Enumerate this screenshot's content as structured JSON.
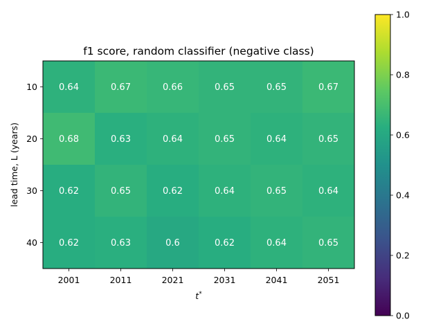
{
  "chart_data": {
    "type": "heatmap",
    "title": "f1 score, random classifier (negative class)",
    "xlabel": "t",
    "xlabel_superscript": "*",
    "ylabel": "lead time, L (years)",
    "x": [
      "2001",
      "2011",
      "2021",
      "2031",
      "2041",
      "2051"
    ],
    "y": [
      "10",
      "20",
      "30",
      "40"
    ],
    "values": [
      [
        0.64,
        0.67,
        0.66,
        0.65,
        0.65,
        0.67
      ],
      [
        0.68,
        0.63,
        0.64,
        0.65,
        0.64,
        0.65
      ],
      [
        0.62,
        0.65,
        0.62,
        0.64,
        0.65,
        0.64
      ],
      [
        0.62,
        0.63,
        0.6,
        0.62,
        0.64,
        0.65
      ]
    ],
    "labels": [
      [
        "0.64",
        "0.67",
        "0.66",
        "0.65",
        "0.65",
        "0.67"
      ],
      [
        "0.68",
        "0.63",
        "0.64",
        "0.65",
        "0.64",
        "0.65"
      ],
      [
        "0.62",
        "0.65",
        "0.62",
        "0.64",
        "0.65",
        "0.64"
      ],
      [
        "0.62",
        "0.63",
        "0.6",
        "0.62",
        "0.64",
        "0.65"
      ]
    ],
    "colorbar": {
      "range": [
        0.0,
        1.0
      ],
      "ticks": [
        "0.0",
        "0.2",
        "0.4",
        "0.6",
        "0.8",
        "1.0"
      ],
      "colormap": "viridis"
    }
  }
}
